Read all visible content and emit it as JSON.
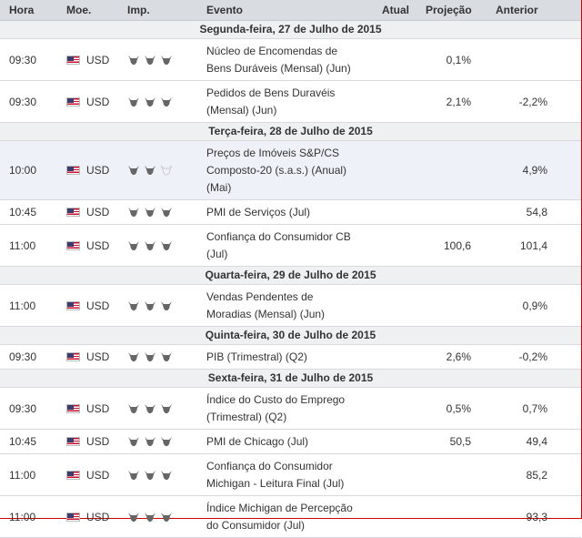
{
  "header": {
    "time": "Hora",
    "currency": "Moe.",
    "importance": "Imp.",
    "event": "Evento",
    "actual": "Atual",
    "forecast": "Projeção",
    "previous": "Anterior"
  },
  "colors": {
    "bull_filled": "#666666",
    "bull_empty": "#cccccc",
    "highlight": "#eef2f8"
  },
  "days": [
    {
      "date": "Segunda-feira, 27 de Julho de 2015",
      "events": [
        {
          "time": "09:30",
          "currency": "USD",
          "importance": 3,
          "name_lines": [
            "Núcleo de Encomendas de",
            "Bens Duráveis (Mensal) (Jun)"
          ],
          "actual": "",
          "forecast": "0,1%",
          "previous": ""
        },
        {
          "time": "09:30",
          "currency": "USD",
          "importance": 3,
          "name_lines": [
            "Pedidos de Bens Duravéis",
            "(Mensal) (Jun)"
          ],
          "actual": "",
          "forecast": "2,1%",
          "previous": "-2,2%"
        }
      ]
    },
    {
      "date": "Terça-feira, 28 de Julho de 2015",
      "events": [
        {
          "time": "10:00",
          "currency": "USD",
          "importance": 2,
          "highlight": true,
          "name_lines": [
            "Preços de Imóveis S&P/CS",
            "Composto-20 (s.a.s.) (Anual)",
            "(Mai)"
          ],
          "actual": "",
          "forecast": "",
          "previous": "4,9%"
        },
        {
          "time": "10:45",
          "currency": "USD",
          "importance": 3,
          "name_lines": [
            "PMI de Serviços (Jul)"
          ],
          "actual": "",
          "forecast": "",
          "previous": "54,8"
        },
        {
          "time": "11:00",
          "currency": "USD",
          "importance": 3,
          "name_lines": [
            "Confiança do Consumidor CB",
            "(Jul)"
          ],
          "actual": "",
          "forecast": "100,6",
          "previous": "101,4"
        }
      ]
    },
    {
      "date": "Quarta-feira, 29 de Julho de 2015",
      "events": [
        {
          "time": "11:00",
          "currency": "USD",
          "importance": 3,
          "name_lines": [
            "Vendas Pendentes de",
            "Moradias (Mensal) (Jun)"
          ],
          "actual": "",
          "forecast": "",
          "previous": "0,9%"
        }
      ]
    },
    {
      "date": "Quinta-feira, 30 de Julho de 2015",
      "events": [
        {
          "time": "09:30",
          "currency": "USD",
          "importance": 3,
          "name_lines": [
            "PIB (Trimestral) (Q2)"
          ],
          "actual": "",
          "forecast": "2,6%",
          "previous": "-0,2%"
        }
      ]
    },
    {
      "date": "Sexta-feira, 31 de Julho de 2015",
      "events": [
        {
          "time": "09:30",
          "currency": "USD",
          "importance": 3,
          "name_lines": [
            "Índice do Custo do Emprego",
            "(Trimestral) (Q2)"
          ],
          "actual": "",
          "forecast": "0,5%",
          "previous": "0,7%"
        },
        {
          "time": "10:45",
          "currency": "USD",
          "importance": 3,
          "name_lines": [
            "PMI de Chicago (Jul)"
          ],
          "actual": "",
          "forecast": "50,5",
          "previous": "49,4"
        },
        {
          "time": "11:00",
          "currency": "USD",
          "importance": 3,
          "name_lines": [
            "Confiança do Consumidor",
            "Michigan - Leitura Final (Jul)"
          ],
          "actual": "",
          "forecast": "",
          "previous": "85,2"
        },
        {
          "time": "11:00",
          "currency": "USD",
          "importance": 3,
          "name_lines": [
            "Índice Michigan de Percepção",
            "do Consumidor (Jul)"
          ],
          "actual": "",
          "forecast": "",
          "previous": "93,3"
        }
      ]
    }
  ]
}
